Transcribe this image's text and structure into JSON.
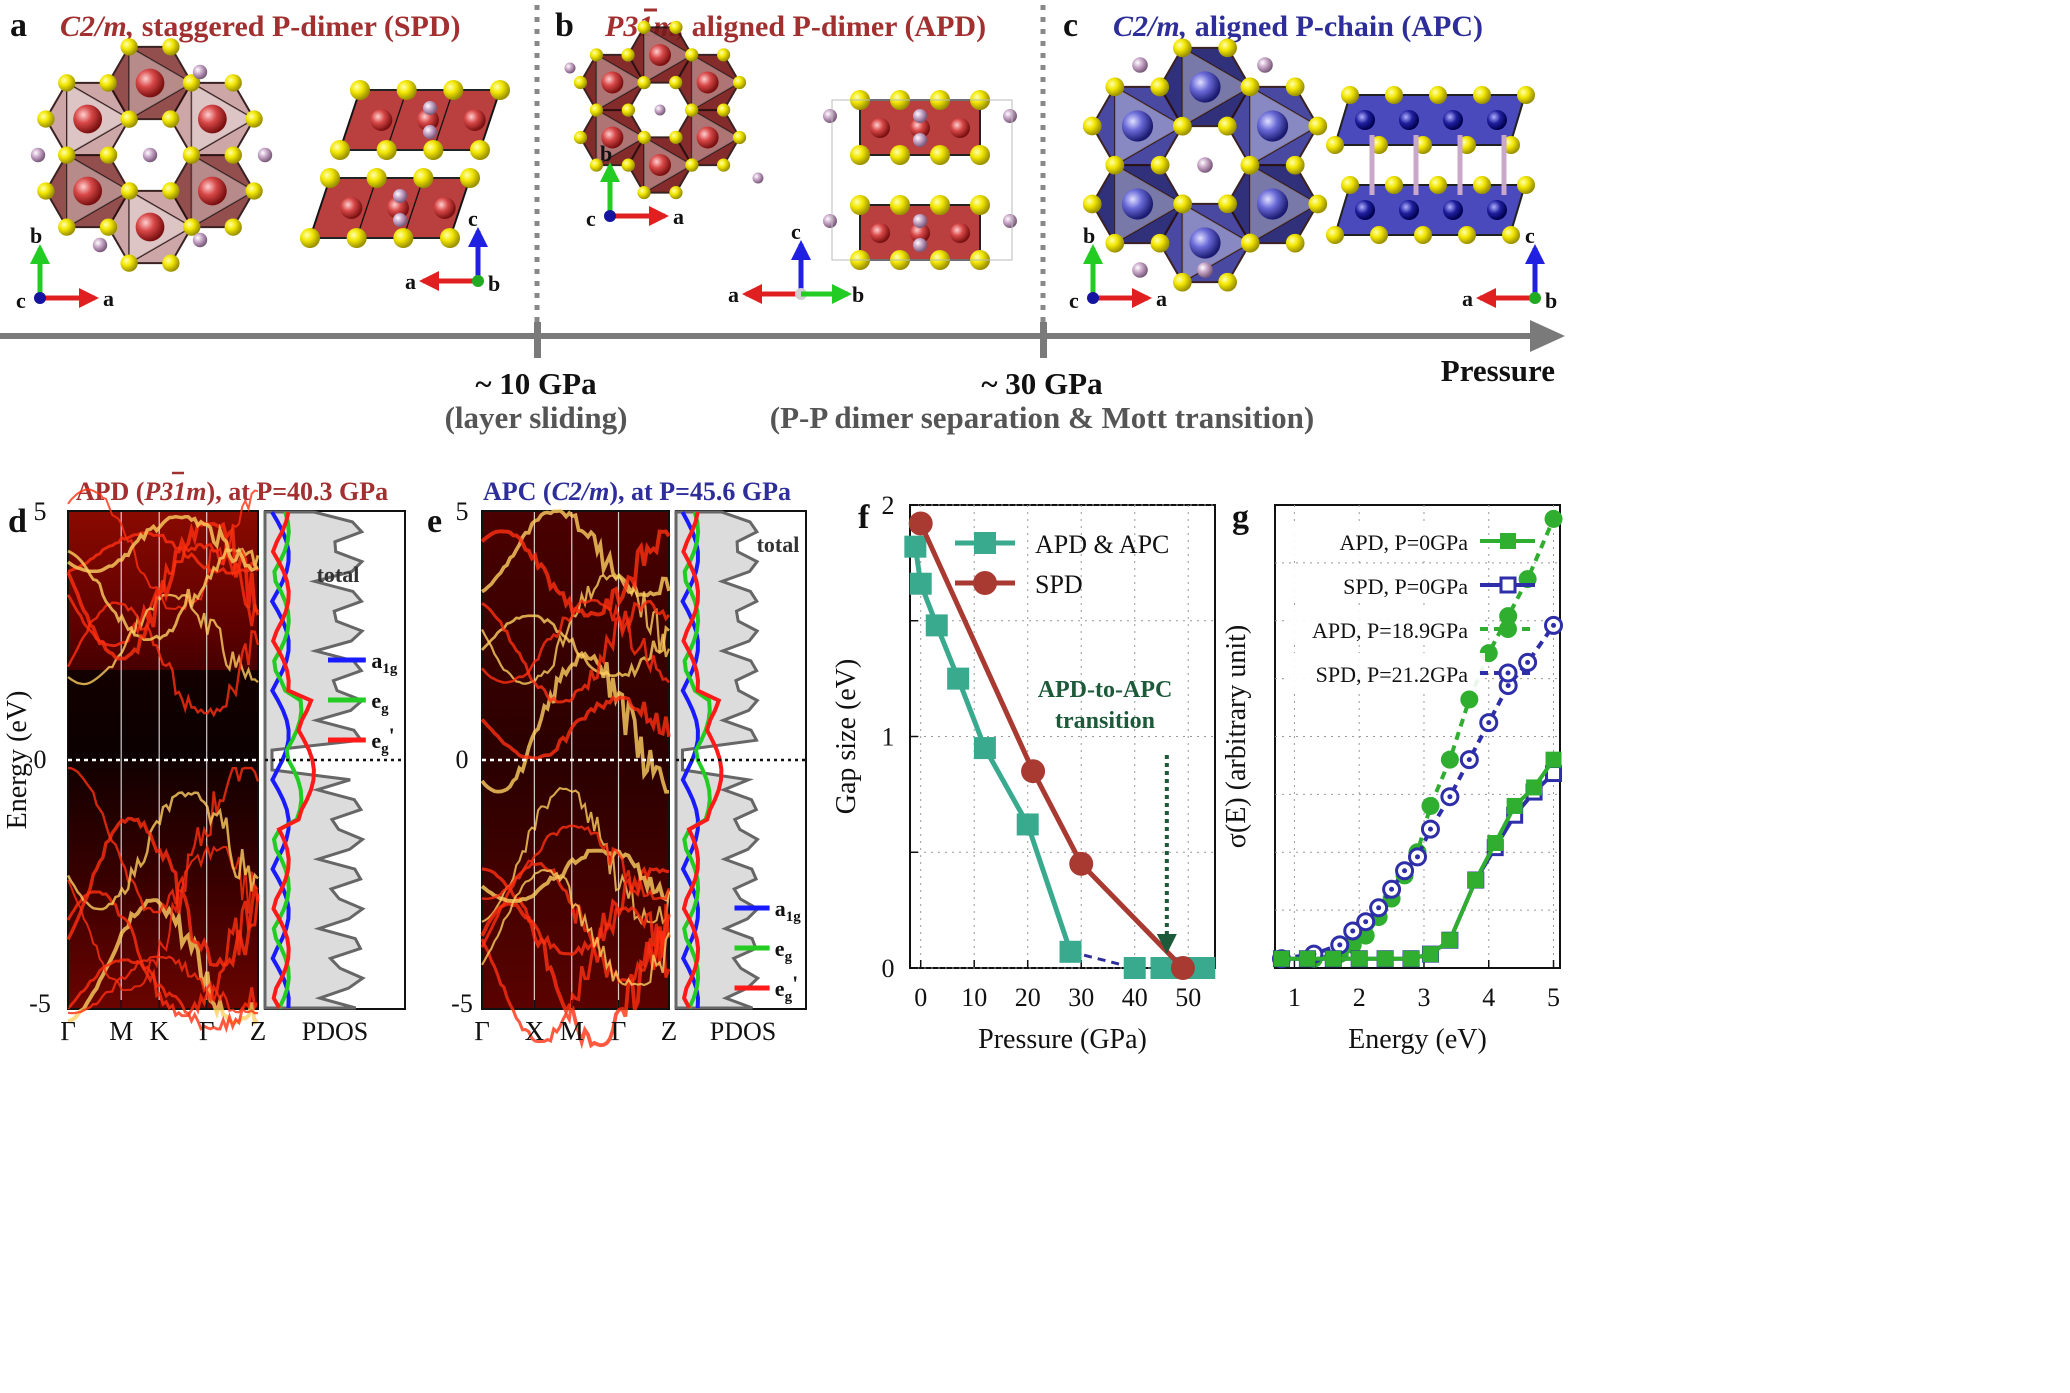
{
  "colors": {
    "spd": "#a33030",
    "apd": "#a33030",
    "apc": "#2e2e9a",
    "teal": "#3aaa8f",
    "gap_spd": "#a83a32",
    "green": "#2fae2f",
    "blue": "#2e2ea8",
    "pdos_blue": "#1a1aff",
    "pdos_green": "#22cc22",
    "pdos_red": "#ff1a1a",
    "pdos_fill": "#dcdcdc"
  },
  "top": {
    "panels": [
      {
        "letter": "a",
        "title": "C2/m, staggered P-dimer (SPD)",
        "title_italic": "C2/m,",
        "title_rest": " staggered P-dimer (SPD)",
        "axes1": {
          "x": "a",
          "y": "b",
          "z": "c"
        },
        "axes2": {
          "x": "a",
          "y": "c",
          "z": "b"
        }
      },
      {
        "letter": "b",
        "title": "P31m, aligned P-dimer (APD)",
        "title_italic": "P31m,",
        "title_rest": " aligned P-dimer (APD)",
        "axes1": {
          "x": "a",
          "y": "b",
          "z": "c"
        },
        "axes2": {
          "x": "b",
          "y": "c",
          "z": "a"
        }
      },
      {
        "letter": "c",
        "title": "C2/m, aligned P-chain (APC)",
        "title_italic": "C2/m,",
        "title_rest": " aligned P-chain (APC)",
        "axes1": {
          "x": "a",
          "y": "b",
          "z": "c"
        },
        "axes2": {
          "x": "a",
          "y": "c",
          "z": "b"
        }
      }
    ],
    "arrow_label": "Pressure",
    "transitions": [
      {
        "pressure": "~ 10 GPa",
        "note": "(layer sliding)"
      },
      {
        "pressure": "~ 30 GPa",
        "note": "(P-P dimer separation & Mott transition)"
      }
    ]
  },
  "bands": [
    {
      "letter": "d",
      "title_pre": "APD (",
      "title_italic": "P31m",
      "title_post": "), at P=40.3 GPa",
      "kpoints": [
        "Γ",
        "M",
        "K",
        "Γ",
        "Z"
      ],
      "pdos_label": "PDOS",
      "total_label": "total",
      "legend": [
        "a1g",
        "eg",
        "eg'"
      ]
    },
    {
      "letter": "e",
      "title_pre": "APC (",
      "title_italic": "C2/m",
      "title_post": "), at P=45.6 GPa",
      "kpoints": [
        "Γ",
        "X",
        "M",
        "Γ",
        "Z"
      ],
      "pdos_label": "PDOS",
      "total_label": "total",
      "legend": [
        "a1g",
        "eg",
        "eg'"
      ]
    }
  ],
  "band_axis": {
    "ylabel": "Energy (eV)",
    "yticks": [
      "5",
      "0",
      "-5"
    ]
  },
  "chart_data": [
    {
      "panel": "f",
      "type": "line",
      "xlabel": "Pressure (GPa)",
      "ylabel": "Gap size (eV)",
      "xlim": [
        -2,
        55
      ],
      "ylim": [
        0,
        2
      ],
      "xticks": [
        0,
        10,
        20,
        30,
        40,
        50
      ],
      "yticks": [
        0,
        1,
        2
      ],
      "annotation": [
        "APD-to-APC",
        "transition"
      ],
      "annotation_x": 46,
      "series": [
        {
          "name": "APD & APC",
          "marker": "square",
          "x": [
            -1,
            0,
            3,
            7,
            12,
            20,
            28,
            40,
            45,
            49,
            53
          ],
          "y": [
            1.82,
            1.66,
            1.48,
            1.25,
            0.95,
            0.62,
            0.07,
            0.0,
            0.0,
            0.0,
            0.0
          ]
        },
        {
          "name": "SPD",
          "marker": "circle",
          "x": [
            0,
            21,
            30,
            49
          ],
          "y": [
            1.92,
            0.85,
            0.45,
            0.0
          ]
        }
      ]
    },
    {
      "panel": "g",
      "type": "line",
      "xlabel": "Energy (eV)",
      "ylabel": "σ(E) (arbitrary unit)",
      "xlim": [
        0.7,
        5.1
      ],
      "ylim": [
        0,
        1
      ],
      "xticks": [
        1,
        2,
        3,
        4,
        5
      ],
      "series": [
        {
          "name": "APD, P=0GPa",
          "marker": "square-filled",
          "style": "solid",
          "x": [
            0.8,
            1.2,
            1.6,
            2.0,
            2.4,
            2.8,
            3.1,
            3.4,
            3.8,
            4.1,
            4.4,
            4.7,
            5.0
          ],
          "y": [
            0.02,
            0.02,
            0.02,
            0.02,
            0.02,
            0.02,
            0.03,
            0.06,
            0.19,
            0.27,
            0.35,
            0.39,
            0.45
          ]
        },
        {
          "name": "SPD, P=0GPa",
          "marker": "square-open",
          "style": "solid",
          "x": [
            0.8,
            1.2,
            1.6,
            2.0,
            2.4,
            2.8,
            3.1,
            3.4,
            3.8,
            4.1,
            4.4,
            4.7,
            5.0
          ],
          "y": [
            0.02,
            0.02,
            0.02,
            0.02,
            0.02,
            0.02,
            0.03,
            0.06,
            0.19,
            0.26,
            0.33,
            0.38,
            0.42
          ]
        },
        {
          "name": "APD, P=18.9GPa",
          "marker": "circle-filled",
          "style": "dashed",
          "x": [
            0.8,
            1.3,
            1.7,
            1.9,
            2.1,
            2.3,
            2.5,
            2.7,
            2.9,
            3.1,
            3.4,
            3.7,
            4.0,
            4.3,
            4.6,
            5.0
          ],
          "y": [
            0.02,
            0.02,
            0.03,
            0.05,
            0.07,
            0.11,
            0.15,
            0.2,
            0.25,
            0.35,
            0.45,
            0.58,
            0.68,
            0.76,
            0.84,
            0.97
          ]
        },
        {
          "name": "SPD, P=21.2GPa",
          "marker": "circle-dot",
          "style": "dashed",
          "x": [
            0.8,
            1.3,
            1.7,
            1.9,
            2.1,
            2.3,
            2.5,
            2.7,
            2.9,
            3.1,
            3.4,
            3.7,
            4.0,
            4.3,
            4.6,
            5.0
          ],
          "y": [
            0.02,
            0.03,
            0.05,
            0.08,
            0.1,
            0.13,
            0.17,
            0.21,
            0.24,
            0.3,
            0.37,
            0.45,
            0.53,
            0.61,
            0.66,
            0.74
          ]
        }
      ]
    }
  ]
}
